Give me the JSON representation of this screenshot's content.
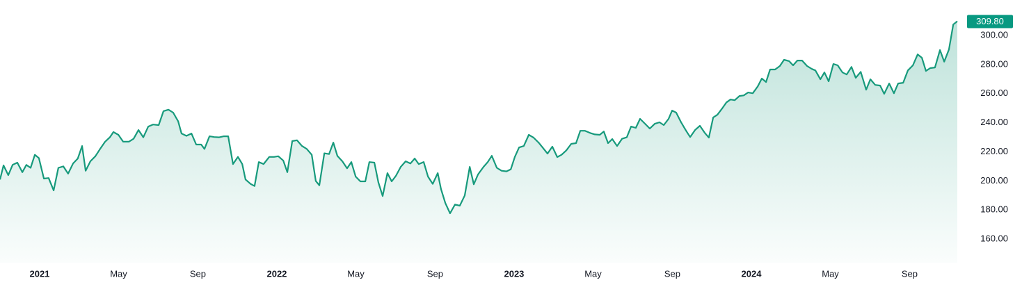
{
  "chart_data": {
    "type": "area",
    "x": [
      2020.833,
      2020.848,
      2020.868,
      2020.886,
      2020.906,
      2020.927,
      2020.944,
      2020.962,
      2020.98,
      2020.997,
      2021.018,
      2021.038,
      2021.059,
      2021.079,
      2021.1,
      2021.12,
      2021.141,
      2021.161,
      2021.179,
      2021.194,
      2021.214,
      2021.235,
      2021.255,
      2021.276,
      2021.296,
      2021.311,
      2021.332,
      2021.352,
      2021.376,
      2021.396,
      2021.417,
      2021.437,
      2021.458,
      2021.478,
      2021.502,
      2021.522,
      2021.543,
      2021.563,
      2021.584,
      2021.598,
      2021.619,
      2021.64,
      2021.66,
      2021.681,
      2021.695,
      2021.716,
      2021.736,
      2021.757,
      2021.777,
      2021.795,
      2021.815,
      2021.836,
      2021.854,
      2021.868,
      2021.889,
      2021.906,
      2021.924,
      2021.944,
      2021.968,
      2021.988,
      2022.006,
      2022.027,
      2022.044,
      2022.065,
      2022.085,
      2022.106,
      2022.126,
      2022.147,
      2022.164,
      2022.179,
      2022.2,
      2022.22,
      2022.238,
      2022.255,
      2022.276,
      2022.296,
      2022.314,
      2022.332,
      2022.352,
      2022.373,
      2022.39,
      2022.411,
      2022.428,
      2022.446,
      2022.466,
      2022.484,
      2022.502,
      2022.522,
      2022.543,
      2022.563,
      2022.581,
      2022.598,
      2022.619,
      2022.637,
      2022.657,
      2022.678,
      2022.692,
      2022.71,
      2022.73,
      2022.751,
      2022.771,
      2022.792,
      2022.813,
      2022.83,
      2022.848,
      2022.871,
      2022.889,
      2022.906,
      2022.927,
      2022.947,
      2022.968,
      2022.986,
      2023.003,
      2023.021,
      2023.041,
      2023.062,
      2023.082,
      2023.103,
      2023.12,
      2023.141,
      2023.161,
      2023.182,
      2023.2,
      2023.22,
      2023.241,
      2023.261,
      2023.279,
      2023.299,
      2023.32,
      2023.34,
      2023.361,
      2023.378,
      2023.396,
      2023.414,
      2023.434,
      2023.455,
      2023.475,
      2023.493,
      2023.513,
      2023.531,
      2023.552,
      2023.572,
      2023.593,
      2023.613,
      2023.631,
      2023.651,
      2023.666,
      2023.683,
      2023.704,
      2023.725,
      2023.742,
      2023.763,
      2023.783,
      2023.804,
      2023.821,
      2023.839,
      2023.857,
      2023.877,
      2023.895,
      2023.912,
      2023.93,
      2023.95,
      2023.968,
      2023.986,
      2024.006,
      2024.027,
      2024.044,
      2024.062,
      2024.079,
      2024.1,
      2024.12,
      2024.138,
      2024.159,
      2024.176,
      2024.194,
      2024.214,
      2024.235,
      2024.255,
      2024.27,
      2024.291,
      2024.308,
      2024.326,
      2024.346,
      2024.364,
      2024.384,
      2024.402,
      2024.422,
      2024.44,
      2024.461,
      2024.484,
      2024.502,
      2024.522,
      2024.543,
      2024.56,
      2024.581,
      2024.601,
      2024.619,
      2024.64,
      2024.66,
      2024.681,
      2024.701,
      2024.719,
      2024.736,
      2024.754,
      2024.774,
      2024.795,
      2024.813,
      2024.833,
      2024.851,
      2024.868
    ],
    "series": [
      {
        "color": "#179a7c",
        "values": [
          201,
          210.7,
          204,
          211,
          212.6,
          206,
          211,
          209,
          218,
          215.7,
          201.6,
          202,
          193.5,
          209,
          210,
          205,
          212,
          215.4,
          224,
          207,
          213.5,
          217,
          222,
          227,
          230,
          233.6,
          231.7,
          227,
          227,
          229,
          235,
          230,
          237.4,
          238.8,
          238.4,
          248,
          249,
          247,
          241,
          232.6,
          231,
          232.6,
          225,
          225,
          222,
          230.7,
          230.2,
          230,
          230.7,
          230.7,
          211.6,
          216.5,
          211.6,
          201,
          198,
          196.5,
          213,
          211.6,
          216.5,
          216.5,
          217,
          214,
          206,
          227.4,
          228,
          224,
          222,
          218,
          200,
          197,
          219,
          218.5,
          226.4,
          217.3,
          213.5,
          208.7,
          213,
          203,
          199.7,
          199.7,
          213,
          212.6,
          199,
          189.6,
          205.4,
          199.7,
          203.5,
          209.7,
          213.5,
          212,
          215.4,
          211.6,
          213,
          203,
          198,
          205.4,
          194.4,
          184.8,
          177.7,
          183.8,
          183,
          190,
          209.7,
          197.7,
          204.5,
          209.7,
          213,
          217.3,
          209,
          207,
          206.6,
          208,
          216.5,
          223,
          224,
          231.7,
          229.8,
          226.4,
          223,
          218.8,
          223.6,
          216.4,
          218,
          221,
          225.5,
          226,
          234.5,
          234.5,
          233,
          232,
          231.7,
          234,
          226,
          228.8,
          224,
          229,
          230,
          237.4,
          236.5,
          242.7,
          239.3,
          236,
          239.3,
          240.3,
          238.4,
          242.7,
          248.4,
          247,
          240.3,
          234.5,
          230.2,
          235,
          237.9,
          233,
          229.8,
          243.6,
          245.5,
          249.8,
          254,
          256,
          255.5,
          258.4,
          258.8,
          260.8,
          260.3,
          265,
          270.4,
          268,
          276.6,
          276.6,
          279,
          283.3,
          282.4,
          279.5,
          282.8,
          282.8,
          279,
          277,
          276,
          269.9,
          274.6,
          268.5,
          280.4,
          279.5,
          274.6,
          273.2,
          278.4,
          270.9,
          275,
          262.7,
          269.9,
          266,
          265.6,
          259.9,
          267,
          260.3,
          267,
          267.5,
          276,
          279.5,
          287,
          284.7,
          275.6,
          277.6,
          278,
          290,
          282,
          290.4,
          307.6,
          309.8
        ]
      }
    ],
    "last_price": {
      "value": 309.8,
      "label": "309.80",
      "color": "#089981"
    },
    "xlim": [
      2020.833,
      2024.874
    ],
    "xticks": [
      {
        "value": 2021,
        "label": "2021"
      },
      {
        "value": 2021.333,
        "label": "May"
      },
      {
        "value": 2021.667,
        "label": "Sep"
      },
      {
        "value": 2022,
        "label": "2022"
      },
      {
        "value": 2022.333,
        "label": "May"
      },
      {
        "value": 2022.667,
        "label": "Sep"
      },
      {
        "value": 2023,
        "label": "2023"
      },
      {
        "value": 2023.333,
        "label": "May"
      },
      {
        "value": 2023.667,
        "label": "Sep"
      },
      {
        "value": 2024,
        "label": "2024"
      },
      {
        "value": 2024.333,
        "label": "May"
      },
      {
        "value": 2024.667,
        "label": "Sep"
      }
    ],
    "ylim": [
      143.8,
      324.4
    ],
    "yticks": [
      {
        "value": 160,
        "label": "160.00"
      },
      {
        "value": 180,
        "label": "180.00"
      },
      {
        "value": 200,
        "label": "200.00"
      },
      {
        "value": 220,
        "label": "220.00"
      },
      {
        "value": 240,
        "label": "240.00"
      },
      {
        "value": 260,
        "label": "260.00"
      },
      {
        "value": 280,
        "label": "280.00"
      },
      {
        "value": 300,
        "label": "300.00"
      }
    ],
    "grid": false
  }
}
